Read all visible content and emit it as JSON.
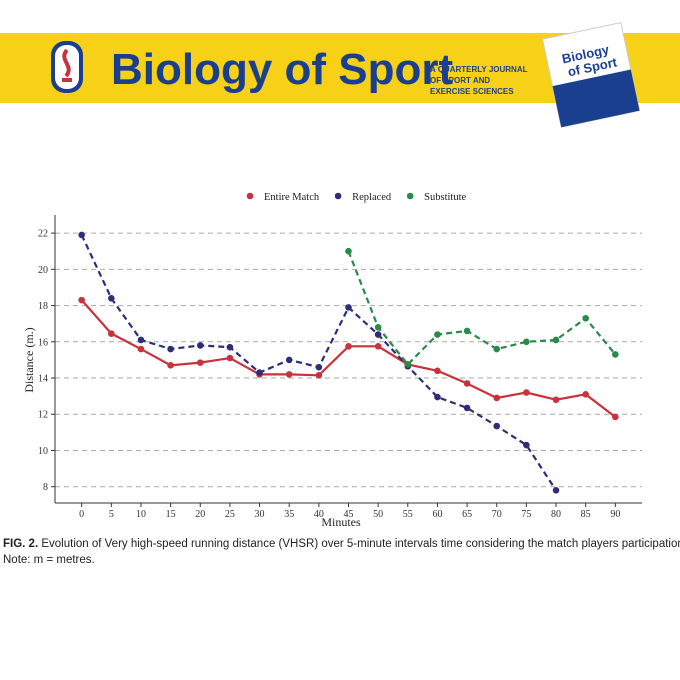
{
  "header": {
    "journal": "Biology of Sport",
    "tagline": [
      "A QUARTERLY JOURNAL",
      "OF SPORT AND",
      "EXERCISE SCIENCES"
    ],
    "cover_title": [
      "Biology",
      "of Sport"
    ]
  },
  "chart_data": {
    "type": "line",
    "xlabel": "Minutes",
    "ylabel": "Distance (m.)",
    "x": [
      0,
      5,
      10,
      15,
      20,
      25,
      30,
      35,
      40,
      45,
      50,
      55,
      60,
      65,
      70,
      75,
      80,
      85,
      90
    ],
    "series": [
      {
        "name": "Entire Match",
        "color": "#c8323c",
        "dash": false,
        "values": [
          18.3,
          16.45,
          15.6,
          14.7,
          14.85,
          15.1,
          14.2,
          14.2,
          14.15,
          15.75,
          15.75,
          14.75,
          14.4,
          13.7,
          12.9,
          13.2,
          12.8,
          13.1,
          11.85
        ]
      },
      {
        "name": "Replaced",
        "color": "#2e2e78",
        "dash": true,
        "values": [
          21.9,
          18.4,
          16.1,
          15.6,
          15.8,
          15.7,
          14.3,
          15.0,
          14.6,
          17.9,
          16.4,
          14.65,
          12.95,
          12.35,
          11.35,
          10.3,
          7.8,
          null,
          null
        ]
      },
      {
        "name": "Substitute",
        "color": "#2a8a4a",
        "dash": true,
        "values": [
          null,
          null,
          null,
          null,
          null,
          null,
          null,
          null,
          null,
          21.0,
          16.8,
          14.75,
          16.4,
          16.6,
          15.6,
          16.0,
          16.1,
          17.3,
          15.3
        ]
      }
    ],
    "xlim": [
      -4.5,
      94.5
    ],
    "ylim": [
      7.1,
      23
    ],
    "xticks": [
      0,
      5,
      10,
      15,
      20,
      25,
      30,
      35,
      40,
      45,
      50,
      55,
      60,
      65,
      70,
      75,
      80,
      85,
      90
    ],
    "yticks": [
      8,
      10,
      12,
      14,
      16,
      18,
      20,
      22
    ],
    "grid": true,
    "legend": "top"
  },
  "caption": {
    "label": "FIG. 2.",
    "text": "Evolution of Very high-speed running distance (VHSR) over 5-minute intervals time considering the match players participation.",
    "note": "Note: m = metres."
  }
}
